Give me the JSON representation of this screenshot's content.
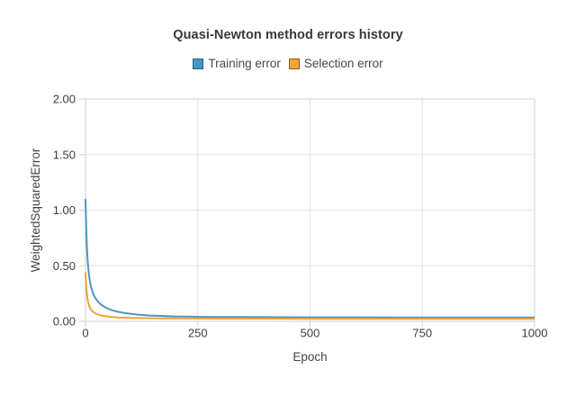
{
  "chart_data": {
    "type": "line",
    "title": "Quasi-Newton method errors history",
    "xlabel": "Epoch",
    "ylabel": "WeightedSquaredError",
    "xlim": [
      0,
      1000
    ],
    "ylim": [
      0,
      2
    ],
    "x_ticks": [
      0,
      250,
      500,
      750,
      1000
    ],
    "x_tick_labels": [
      "0",
      "250",
      "500",
      "750",
      "1000"
    ],
    "y_ticks": [
      0,
      0.5,
      1,
      1.5,
      2
    ],
    "y_tick_labels": [
      "0.00",
      "0.50",
      "1.00",
      "1.50",
      "2.00"
    ],
    "grid": true,
    "grid_color": "#e4e4e4",
    "axis_color": "#cfcfcf",
    "legend_position": "top",
    "series": [
      {
        "name": "Training error",
        "color": "#4e96be",
        "swatch_fill": "#4694c8",
        "swatch_border": "#2b5f7e",
        "points": [
          [
            0,
            1.1
          ],
          [
            1,
            0.93
          ],
          [
            2,
            0.79
          ],
          [
            3,
            0.68
          ],
          [
            4,
            0.6
          ],
          [
            5,
            0.535
          ],
          [
            6,
            0.485
          ],
          [
            8,
            0.41
          ],
          [
            10,
            0.355
          ],
          [
            13,
            0.3
          ],
          [
            16,
            0.26
          ],
          [
            20,
            0.222
          ],
          [
            25,
            0.19
          ],
          [
            30,
            0.166
          ],
          [
            36,
            0.146
          ],
          [
            43,
            0.128
          ],
          [
            50,
            0.114
          ],
          [
            60,
            0.099
          ],
          [
            72,
            0.086
          ],
          [
            85,
            0.076
          ],
          [
            100,
            0.068
          ],
          [
            120,
            0.059
          ],
          [
            140,
            0.053
          ],
          [
            160,
            0.049
          ],
          [
            180,
            0.046
          ],
          [
            200,
            0.044
          ],
          [
            230,
            0.042
          ],
          [
            260,
            0.04
          ],
          [
            300,
            0.039
          ],
          [
            350,
            0.038
          ],
          [
            400,
            0.037
          ],
          [
            500,
            0.036
          ],
          [
            600,
            0.036
          ],
          [
            700,
            0.035
          ],
          [
            800,
            0.035
          ],
          [
            900,
            0.035
          ],
          [
            1000,
            0.035
          ]
        ]
      },
      {
        "name": "Selection error",
        "color": "#eca33d",
        "swatch_fill": "#f2a33c",
        "swatch_border": "#8a5c20",
        "points": [
          [
            0,
            0.44
          ],
          [
            1,
            0.355
          ],
          [
            2,
            0.295
          ],
          [
            3,
            0.25
          ],
          [
            4,
            0.215
          ],
          [
            5,
            0.19
          ],
          [
            6,
            0.17
          ],
          [
            8,
            0.141
          ],
          [
            10,
            0.121
          ],
          [
            13,
            0.101
          ],
          [
            16,
            0.088
          ],
          [
            20,
            0.076
          ],
          [
            25,
            0.065
          ],
          [
            30,
            0.058
          ],
          [
            36,
            0.052
          ],
          [
            43,
            0.047
          ],
          [
            50,
            0.043
          ],
          [
            60,
            0.039
          ],
          [
            72,
            0.035
          ],
          [
            85,
            0.033
          ],
          [
            100,
            0.031
          ],
          [
            120,
            0.029
          ],
          [
            140,
            0.028
          ],
          [
            160,
            0.027
          ],
          [
            180,
            0.026
          ],
          [
            200,
            0.026
          ],
          [
            230,
            0.025
          ],
          [
            260,
            0.025
          ],
          [
            300,
            0.024
          ],
          [
            350,
            0.024
          ],
          [
            400,
            0.024
          ],
          [
            500,
            0.023
          ],
          [
            600,
            0.023
          ],
          [
            700,
            0.023
          ],
          [
            800,
            0.023
          ],
          [
            900,
            0.023
          ],
          [
            1000,
            0.023
          ]
        ]
      }
    ]
  }
}
